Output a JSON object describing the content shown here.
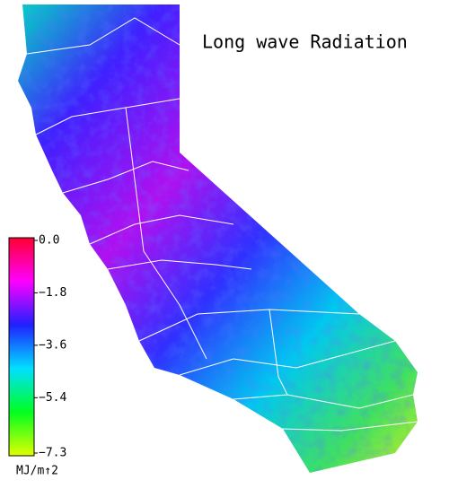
{
  "map": {
    "title": "Long wave Radiation",
    "colorbar": {
      "lim": [
        -7.3,
        0
      ],
      "ticks": [
        {
          "value": 0,
          "label": "0.0"
        },
        {
          "value": -1.8,
          "label": "−1.8"
        },
        {
          "value": -3.6,
          "label": "−3.6"
        },
        {
          "value": -5.4,
          "label": "−5.4"
        },
        {
          "value": -7.3,
          "label": "−7.3"
        }
      ],
      "colors": [
        "#ff0030",
        "#ff00ff",
        "#2020ff",
        "#00e0ff",
        "#00ff20",
        "#e0ff00"
      ],
      "unit": "MJ/m↑2"
    }
  }
}
